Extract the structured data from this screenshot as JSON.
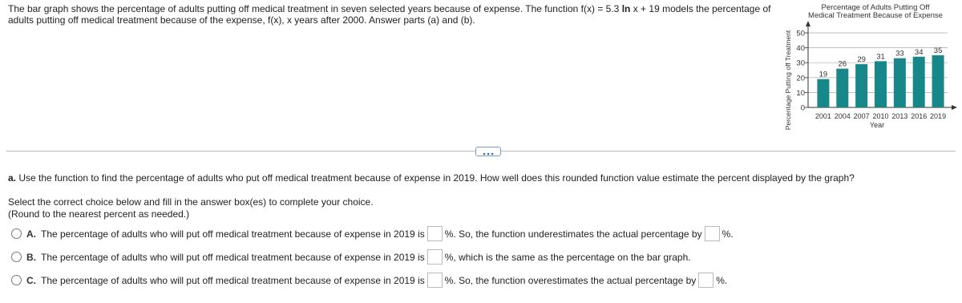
{
  "intro": {
    "before": "The bar graph shows the percentage of adults putting off medical treatment in seven selected years because of expense. The function f(x) = 5.3",
    "bold": "ln",
    "after": "x + 19 models the percentage of adults putting off medical treatment because of the expense, f(x), x years after 2000. Answer parts (a) and (b)."
  },
  "chart_data": {
    "type": "bar",
    "title": [
      "Percentage of Adults Putting Off",
      "Medical Treatment Because of Expense"
    ],
    "x_label": "Year",
    "y_label": "Percentage Putting off Treatment",
    "categories": [
      "2001",
      "2004",
      "2007",
      "2010",
      "2013",
      "2016",
      "2019"
    ],
    "values": [
      19,
      26,
      29,
      31,
      33,
      34,
      35
    ],
    "color": "#17878a",
    "ylim": [
      0,
      50
    ],
    "yticks": [
      0,
      10,
      20,
      30,
      40,
      50
    ],
    "grid": true
  },
  "question": {
    "part": "a.",
    "text": "Use the function to find the percentage of adults who put off medical treatment because of expense in 2019. How well does this rounded function value estimate the percent displayed by the graph?"
  },
  "instructions": [
    "Select the correct choice below and fill in the answer box(es) to complete your choice.",
    "(Round to the nearest percent as needed.)"
  ],
  "choices": [
    {
      "letter": "A.",
      "parts": [
        "The percentage of adults who will put off medical treatment because of expense in 2019 is",
        "%. So, the function underestimates the actual percentage by",
        "%."
      ]
    },
    {
      "letter": "B.",
      "parts": [
        "The percentage of adults who will put off medical treatment because of expense in 2019 is",
        "%, which is the same as the percentage on the bar graph."
      ]
    },
    {
      "letter": "C.",
      "parts": [
        "The percentage of adults who will put off medical treatment because of expense in 2019 is",
        "%. So, the function overestimates the actual percentage by",
        "%."
      ]
    }
  ]
}
